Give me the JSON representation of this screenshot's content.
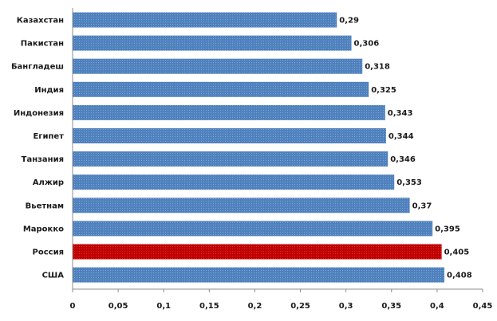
{
  "chart_data": {
    "type": "bar",
    "orientation": "horizontal",
    "categories": [
      "Казахстан",
      "Пакистан",
      "Бангладеш",
      "Индия",
      "Индонезия",
      "Египет",
      "Танзания",
      "Алжир",
      "Вьетнам",
      "Марокко",
      "Россия",
      "США"
    ],
    "values": [
      0.29,
      0.306,
      0.318,
      0.325,
      0.343,
      0.344,
      0.346,
      0.353,
      0.37,
      0.395,
      0.405,
      0.408
    ],
    "value_labels": [
      "0,29",
      "0,306",
      "0,318",
      "0,325",
      "0,343",
      "0,344",
      "0,346",
      "0,353",
      "0,37",
      "0,395",
      "0,405",
      "0,408"
    ],
    "x_ticks": [
      "0",
      "0,05",
      "0,1",
      "0,15",
      "0,2",
      "0,25",
      "0,3",
      "0,35",
      "0,4",
      "0,45"
    ],
    "xlim": [
      0,
      0.45
    ],
    "title": "",
    "xlabel": "",
    "ylabel": "",
    "grid": false,
    "legend": "none",
    "colors": {
      "bar": "#4f81bd",
      "highlight": "#c00000",
      "highlight_category": "Россия"
    }
  }
}
